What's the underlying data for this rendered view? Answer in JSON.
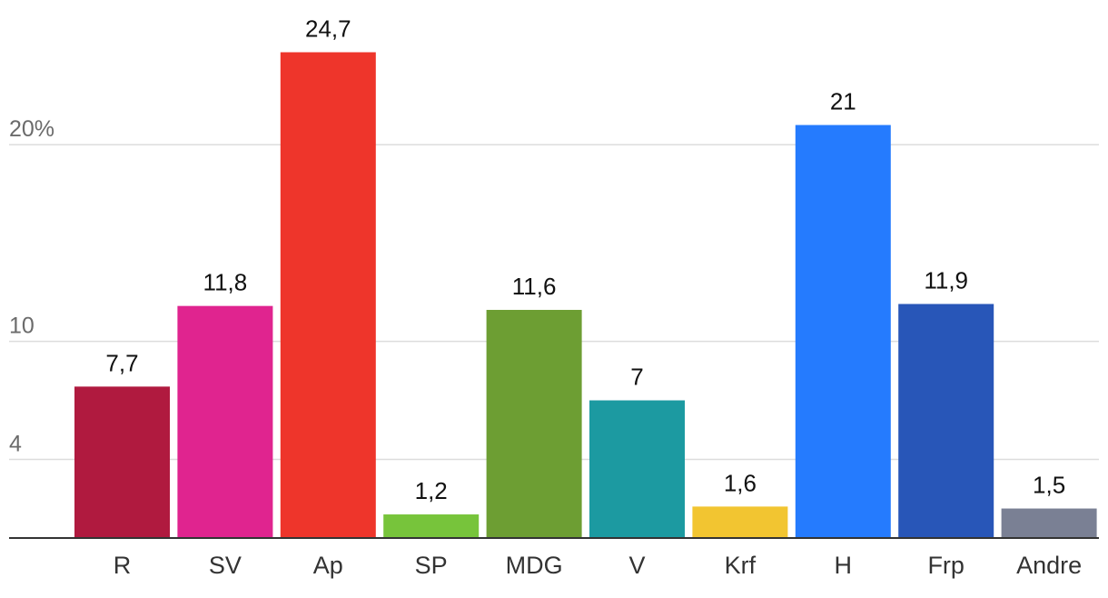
{
  "chart_data": {
    "type": "bar",
    "title": "",
    "xlabel": "",
    "ylabel": "",
    "ylim": [
      0,
      25.5
    ],
    "grid": true,
    "yticks": [
      {
        "value": 4,
        "label": "4"
      },
      {
        "value": 10,
        "label": "10"
      },
      {
        "value": 20,
        "label": "20%"
      }
    ],
    "categories": [
      "R",
      "SV",
      "Ap",
      "SP",
      "MDG",
      "V",
      "Krf",
      "H",
      "Frp",
      "Andre"
    ],
    "values": [
      7.7,
      11.8,
      24.7,
      1.2,
      11.6,
      7,
      1.6,
      21,
      11.9,
      1.5
    ],
    "value_labels": [
      "7,7",
      "11,8",
      "24,7",
      "1,2",
      "11,6",
      "7",
      "1,6",
      "21",
      "11,9",
      "1,5"
    ],
    "colors": [
      "#b01a3f",
      "#e0248f",
      "#ee352b",
      "#77c43b",
      "#6d9e33",
      "#1c9aa1",
      "#f2c531",
      "#257bfe",
      "#2856b8",
      "#7a8094"
    ]
  }
}
